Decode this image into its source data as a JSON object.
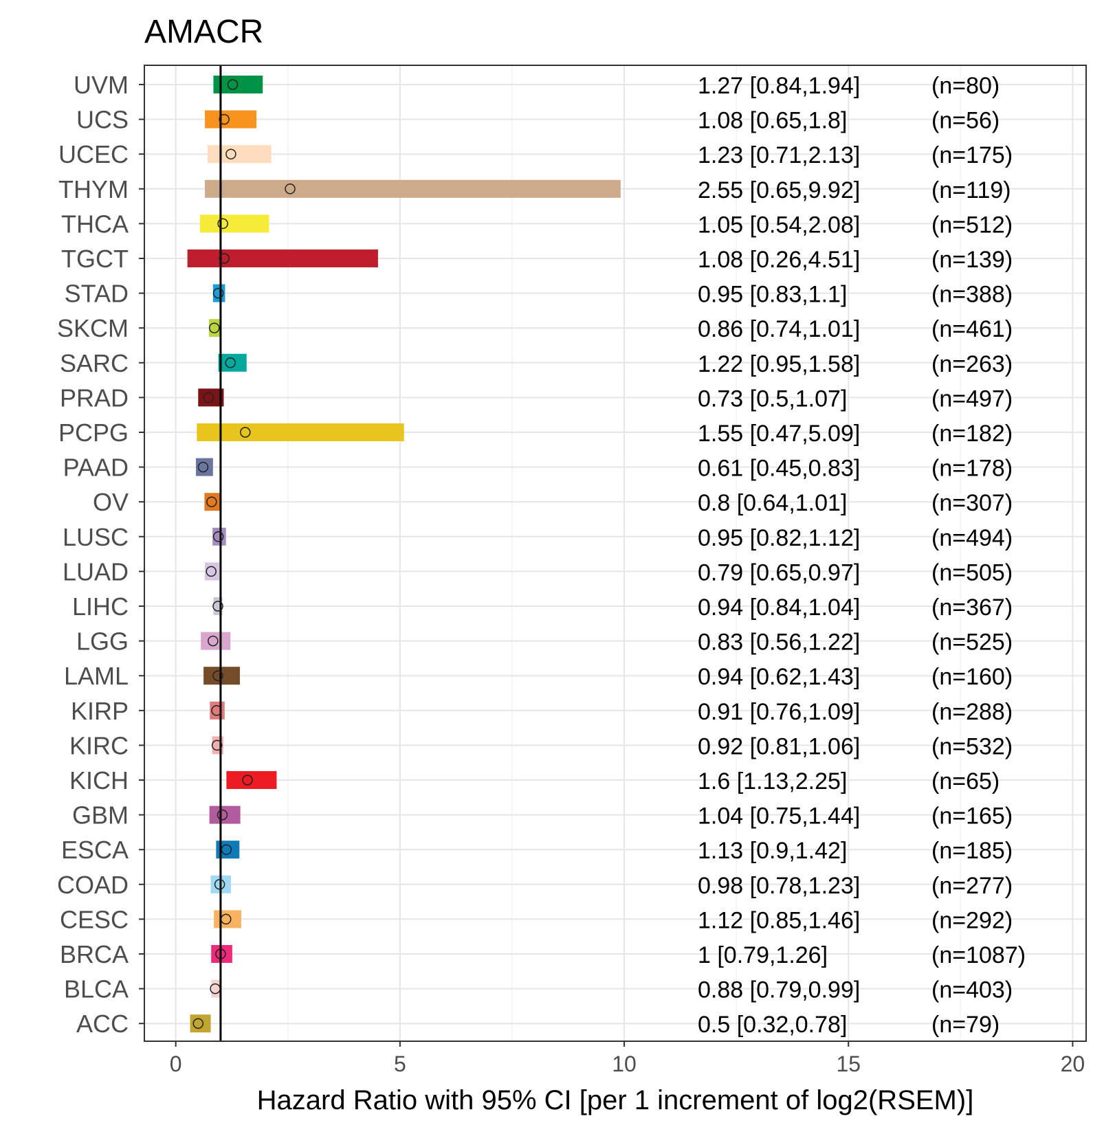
{
  "chart_data": {
    "type": "forest",
    "title": "AMACR",
    "xlabel": "Hazard Ratio with 95% CI [per 1 increment of log2(RSEM)]",
    "xlim": [
      -0.7,
      20.3
    ],
    "xticks": [
      0,
      5,
      10,
      15,
      20
    ],
    "reference_line": 1,
    "grid": true,
    "rows": [
      {
        "label": "UVM",
        "hr": 1.27,
        "lo": 0.84,
        "hi": 1.94,
        "text": "1.27 [0.84,1.94]",
        "n": "(n=80)",
        "color": "#009245"
      },
      {
        "label": "UCS",
        "hr": 1.08,
        "lo": 0.65,
        "hi": 1.8,
        "text": "1.08 [0.65,1.8]",
        "n": "(n=56)",
        "color": "#F7931E"
      },
      {
        "label": "UCEC",
        "hr": 1.23,
        "lo": 0.71,
        "hi": 2.13,
        "text": "1.23 [0.71,2.13]",
        "n": "(n=175)",
        "color": "#FDDDBE"
      },
      {
        "label": "THYM",
        "hr": 2.55,
        "lo": 0.65,
        "hi": 9.92,
        "text": "2.55 [0.65,9.92]",
        "n": "(n=119)",
        "color": "#CDAA89"
      },
      {
        "label": "THCA",
        "hr": 1.05,
        "lo": 0.54,
        "hi": 2.08,
        "text": "1.05 [0.54,2.08]",
        "n": "(n=512)",
        "color": "#F5EB38"
      },
      {
        "label": "TGCT",
        "hr": 1.08,
        "lo": 0.26,
        "hi": 4.51,
        "text": "1.08 [0.26,4.51]",
        "n": "(n=139)",
        "color": "#BE1E2D"
      },
      {
        "label": "STAD",
        "hr": 0.95,
        "lo": 0.83,
        "hi": 1.1,
        "text": "0.95 [0.83,1.1]",
        "n": "(n=388)",
        "color": "#1C9CD8"
      },
      {
        "label": "SKCM",
        "hr": 0.86,
        "lo": 0.74,
        "hi": 1.01,
        "text": "0.86 [0.74,1.01]",
        "n": "(n=461)",
        "color": "#BBD642"
      },
      {
        "label": "SARC",
        "hr": 1.22,
        "lo": 0.95,
        "hi": 1.58,
        "text": "1.22 [0.95,1.58]",
        "n": "(n=263)",
        "color": "#00A99D"
      },
      {
        "label": "PRAD",
        "hr": 0.73,
        "lo": 0.5,
        "hi": 1.07,
        "text": "0.73 [0.5,1.07]",
        "n": "(n=497)",
        "color": "#7A1416"
      },
      {
        "label": "PCPG",
        "hr": 1.55,
        "lo": 0.47,
        "hi": 5.09,
        "text": "1.55 [0.47,5.09]",
        "n": "(n=182)",
        "color": "#E8C51D"
      },
      {
        "label": "PAAD",
        "hr": 0.61,
        "lo": 0.45,
        "hi": 0.83,
        "text": "0.61 [0.45,0.83]",
        "n": "(n=178)",
        "color": "#6A75A0"
      },
      {
        "label": "OV",
        "hr": 0.8,
        "lo": 0.64,
        "hi": 1.01,
        "text": "0.8 [0.64,1.01]",
        "n": "(n=307)",
        "color": "#E17A23"
      },
      {
        "label": "LUSC",
        "hr": 0.95,
        "lo": 0.82,
        "hi": 1.12,
        "text": "0.95 [0.82,1.12]",
        "n": "(n=494)",
        "color": "#A48CBE"
      },
      {
        "label": "LUAD",
        "hr": 0.79,
        "lo": 0.65,
        "hi": 0.97,
        "text": "0.79 [0.65,0.97]",
        "n": "(n=505)",
        "color": "#D6C8E2"
      },
      {
        "label": "LIHC",
        "hr": 0.94,
        "lo": 0.84,
        "hi": 1.04,
        "text": "0.94 [0.84,1.04]",
        "n": "(n=367)",
        "color": "#C8C8D8"
      },
      {
        "label": "LGG",
        "hr": 0.83,
        "lo": 0.56,
        "hi": 1.22,
        "text": "0.83 [0.56,1.22]",
        "n": "(n=525)",
        "color": "#D9A7CE"
      },
      {
        "label": "LAML",
        "hr": 0.94,
        "lo": 0.62,
        "hi": 1.43,
        "text": "0.94 [0.62,1.43]",
        "n": "(n=160)",
        "color": "#754C29"
      },
      {
        "label": "KIRP",
        "hr": 0.91,
        "lo": 0.76,
        "hi": 1.09,
        "text": "0.91 [0.76,1.09]",
        "n": "(n=288)",
        "color": "#E07B7B"
      },
      {
        "label": "KIRC",
        "hr": 0.92,
        "lo": 0.81,
        "hi": 1.06,
        "text": "0.92 [0.81,1.06]",
        "n": "(n=532)",
        "color": "#F2AFAF"
      },
      {
        "label": "KICH",
        "hr": 1.6,
        "lo": 1.13,
        "hi": 2.25,
        "text": "1.6 [1.13,2.25]",
        "n": "(n=65)",
        "color": "#ED1C24"
      },
      {
        "label": "GBM",
        "hr": 1.04,
        "lo": 0.75,
        "hi": 1.44,
        "text": "1.04 [0.75,1.44]",
        "n": "(n=165)",
        "color": "#B25B9E"
      },
      {
        "label": "ESCA",
        "hr": 1.13,
        "lo": 0.9,
        "hi": 1.42,
        "text": "1.13 [0.9,1.42]",
        "n": "(n=185)",
        "color": "#0E7BB8"
      },
      {
        "label": "COAD",
        "hr": 0.98,
        "lo": 0.78,
        "hi": 1.23,
        "text": "0.98 [0.78,1.23]",
        "n": "(n=277)",
        "color": "#9FD9F4"
      },
      {
        "label": "CESC",
        "hr": 1.12,
        "lo": 0.85,
        "hi": 1.46,
        "text": "1.12 [0.85,1.46]",
        "n": "(n=292)",
        "color": "#F9B360"
      },
      {
        "label": "BRCA",
        "hr": 1,
        "lo": 0.79,
        "hi": 1.26,
        "text": "1 [0.79,1.26]",
        "n": "(n=1087)",
        "color": "#EE2A7B"
      },
      {
        "label": "BLCA",
        "hr": 0.88,
        "lo": 0.79,
        "hi": 0.99,
        "text": "0.88 [0.79,0.99]",
        "n": "(n=403)",
        "color": "#F6D3D3"
      },
      {
        "label": "ACC",
        "hr": 0.5,
        "lo": 0.32,
        "hi": 0.78,
        "text": "0.5 [0.32,0.78]",
        "n": "(n=79)",
        "color": "#C0A531"
      }
    ]
  }
}
